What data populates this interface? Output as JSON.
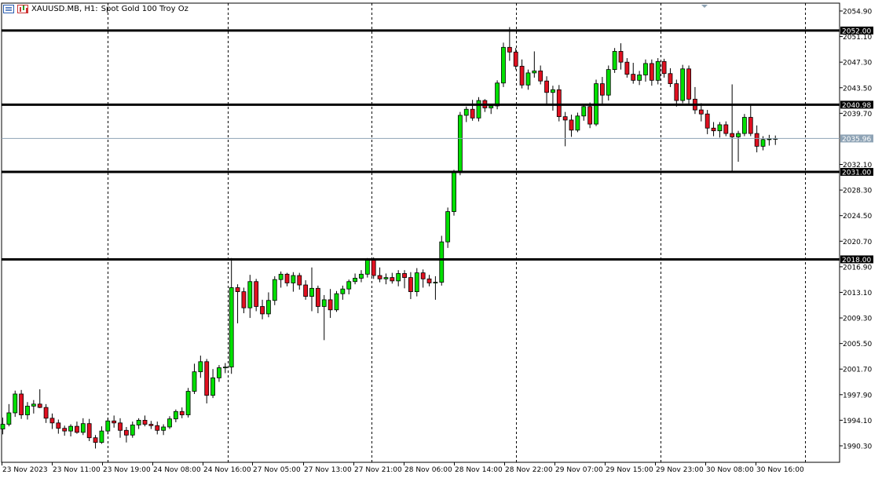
{
  "header": {
    "symbol": "XAUUSD.MB, H1:",
    "description": "Spot Gold 100 Troy Oz",
    "icons": [
      "chart-menu-icon",
      "chart-type-icon"
    ]
  },
  "colors": {
    "bull": "#00e000",
    "bear": "#e01020",
    "wick": "#000000",
    "level_line": "#000000",
    "bid_line": "#8ea3b5",
    "grid": "#000000"
  },
  "price_axis": {
    "ticks": [
      "2054.90",
      "2051.10",
      "2047.30",
      "2043.50",
      "2039.70",
      "2032.10",
      "2028.30",
      "2024.50",
      "2020.70",
      "2016.90",
      "2013.10",
      "2009.30",
      "2005.50",
      "2001.70",
      "1997.90",
      "1994.10",
      "1990.30"
    ],
    "current_price": "2035.96"
  },
  "levels": [
    {
      "label": "2052.00",
      "price": 2052.0
    },
    {
      "label": "2040.98",
      "price": 2040.98
    },
    {
      "label": "2031.00",
      "price": 2031.0
    },
    {
      "label": "2018.00",
      "price": 2018.0
    }
  ],
  "time_axis": {
    "labels": [
      "23 Nov 2023",
      "23 Nov 11:00",
      "23 Nov 19:00",
      "24 Nov 08:00",
      "24 Nov 16:00",
      "27 Nov 05:00",
      "27 Nov 13:00",
      "27 Nov 21:00",
      "28 Nov 06:00",
      "28 Nov 14:00",
      "28 Nov 22:00",
      "29 Nov 07:00",
      "29 Nov 15:00",
      "29 Nov 23:00",
      "30 Nov 08:00",
      "30 Nov 16:00"
    ]
  },
  "chart_data": {
    "type": "candlestick",
    "title": "XAUUSD.MB, H1: Spot Gold 100 Troy Oz",
    "ylim": [
      1988.0,
      2056.0
    ],
    "candles": [
      [
        1992.8,
        1994.5,
        1992.0,
        1993.5
      ],
      [
        1993.5,
        1996.5,
        1993.2,
        1995.2
      ],
      [
        1995.2,
        1998.5,
        1994.6,
        1998.0
      ],
      [
        1998.0,
        1998.6,
        1994.3,
        1994.9
      ],
      [
        1994.9,
        1996.8,
        1994.2,
        1996.2
      ],
      [
        1996.2,
        1997.1,
        1995.1,
        1996.5
      ],
      [
        1996.5,
        1998.7,
        1995.9,
        1996.0
      ],
      [
        1996.0,
        1996.5,
        1993.7,
        1994.4
      ],
      [
        1994.4,
        1995.1,
        1992.8,
        1993.7
      ],
      [
        1993.7,
        1994.2,
        1992.1,
        1992.9
      ],
      [
        1992.9,
        1993.3,
        1991.8,
        1992.5
      ],
      [
        1992.5,
        1993.5,
        1991.7,
        1993.2
      ],
      [
        1993.2,
        1993.9,
        1992.1,
        1992.3
      ],
      [
        1992.3,
        1994.4,
        1991.9,
        1993.6
      ],
      [
        1993.6,
        1994.3,
        1991.0,
        1991.5
      ],
      [
        1991.5,
        1991.9,
        1989.9,
        1990.8
      ],
      [
        1990.8,
        1993.2,
        1990.6,
        1992.5
      ],
      [
        1992.5,
        1994.5,
        1992.0,
        1994.0
      ],
      [
        1994.0,
        1994.8,
        1993.0,
        1993.7
      ],
      [
        1993.7,
        1994.4,
        1991.5,
        1992.6
      ],
      [
        1992.6,
        1993.1,
        1990.8,
        1991.9
      ],
      [
        1991.9,
        1993.9,
        1991.5,
        1993.4
      ],
      [
        1993.4,
        1994.4,
        1992.8,
        1994.1
      ],
      [
        1994.1,
        1994.8,
        1993.2,
        1993.5
      ],
      [
        1993.5,
        1994.0,
        1992.8,
        1993.3
      ],
      [
        1993.3,
        1993.9,
        1992.0,
        1992.6
      ],
      [
        1992.6,
        1993.5,
        1991.9,
        1993.1
      ],
      [
        1993.1,
        1994.7,
        1992.8,
        1994.3
      ],
      [
        1994.3,
        1995.7,
        1993.8,
        1995.4
      ],
      [
        1995.4,
        1996.0,
        1994.4,
        1994.9
      ],
      [
        1994.9,
        1998.9,
        1994.5,
        1998.4
      ],
      [
        1998.4,
        2002.5,
        1998.0,
        2001.3
      ],
      [
        2001.3,
        2003.7,
        2000.4,
        2002.8
      ],
      [
        2002.8,
        2003.2,
        1996.6,
        1997.8
      ],
      [
        1997.8,
        2001.7,
        1997.4,
        2000.4
      ],
      [
        2000.4,
        2002.3,
        1999.8,
        2001.9
      ],
      [
        2001.9,
        2002.6,
        2001.1,
        2002.0
      ],
      [
        2002.0,
        2018.2,
        2001.0,
        2013.8
      ],
      [
        2013.8,
        2014.3,
        2008.5,
        2013.2
      ],
      [
        2013.2,
        2013.8,
        2010.0,
        2010.8
      ],
      [
        2010.8,
        2015.7,
        2009.3,
        2014.7
      ],
      [
        2014.7,
        2015.1,
        2010.3,
        2011.0
      ],
      [
        2011.0,
        2012.0,
        2009.1,
        2009.9
      ],
      [
        2009.9,
        2013.1,
        2009.4,
        2011.9
      ],
      [
        2011.9,
        2015.5,
        2011.2,
        2015.0
      ],
      [
        2015.0,
        2016.2,
        2013.8,
        2015.8
      ],
      [
        2015.8,
        2016.0,
        2014.0,
        2014.5
      ],
      [
        2014.5,
        2016.1,
        2013.2,
        2015.6
      ],
      [
        2015.6,
        2016.0,
        2013.5,
        2014.2
      ],
      [
        2014.2,
        2014.9,
        2012.0,
        2012.5
      ],
      [
        2012.5,
        2016.8,
        2010.3,
        2013.7
      ],
      [
        2013.7,
        2014.1,
        2010.0,
        2011.0
      ],
      [
        2011.0,
        2012.7,
        2006.0,
        2012.0
      ],
      [
        2012.0,
        2013.6,
        2009.3,
        2010.5
      ],
      [
        2010.5,
        2013.3,
        2010.2,
        2012.9
      ],
      [
        2012.9,
        2014.1,
        2012.0,
        2013.6
      ],
      [
        2013.6,
        2015.0,
        2012.8,
        2014.7
      ],
      [
        2014.7,
        2015.9,
        2014.3,
        2015.2
      ],
      [
        2015.2,
        2016.4,
        2014.6,
        2015.8
      ],
      [
        2015.8,
        2018.2,
        2015.3,
        2017.9
      ],
      [
        2017.9,
        2018.3,
        2015.1,
        2015.6
      ],
      [
        2015.6,
        2016.8,
        2014.6,
        2015.1
      ],
      [
        2015.1,
        2015.9,
        2014.3,
        2015.3
      ],
      [
        2015.3,
        2016.0,
        2014.4,
        2014.8
      ],
      [
        2014.8,
        2016.4,
        2014.0,
        2015.9
      ],
      [
        2015.9,
        2016.4,
        2013.7,
        2015.3
      ],
      [
        2015.3,
        2016.1,
        2012.1,
        2013.2
      ],
      [
        2013.2,
        2016.7,
        2012.5,
        2016.0
      ],
      [
        2016.0,
        2016.5,
        2013.8,
        2015.1
      ],
      [
        2015.1,
        2015.7,
        2014.0,
        2014.5
      ],
      [
        2014.5,
        2015.5,
        2012.0,
        2014.6
      ],
      [
        2014.6,
        2021.5,
        2014.1,
        2020.6
      ],
      [
        2020.6,
        2025.7,
        2019.7,
        2025.1
      ],
      [
        2025.1,
        2031.3,
        2024.5,
        2030.9
      ],
      [
        2030.9,
        2039.9,
        2030.5,
        2039.4
      ],
      [
        2039.4,
        2040.7,
        2038.4,
        2040.3
      ],
      [
        2040.3,
        2041.7,
        2038.6,
        2039.0
      ],
      [
        2039.0,
        2042.1,
        2038.5,
        2041.6
      ],
      [
        2041.6,
        2041.8,
        2039.9,
        2040.5
      ],
      [
        2040.5,
        2041.1,
        2039.6,
        2040.8
      ],
      [
        2040.8,
        2044.6,
        2040.3,
        2044.2
      ],
      [
        2044.2,
        2050.2,
        2043.6,
        2049.5
      ],
      [
        2049.5,
        2052.5,
        2047.5,
        2048.8
      ],
      [
        2048.8,
        2049.4,
        2046.2,
        2046.7
      ],
      [
        2046.7,
        2047.7,
        2043.4,
        2043.9
      ],
      [
        2043.9,
        2046.2,
        2043.2,
        2045.7
      ],
      [
        2045.7,
        2048.9,
        2045.0,
        2046.0
      ],
      [
        2046.0,
        2046.8,
        2044.0,
        2044.5
      ],
      [
        2044.5,
        2045.2,
        2041.0,
        2042.8
      ],
      [
        2042.8,
        2043.8,
        2040.1,
        2043.2
      ],
      [
        2043.2,
        2043.9,
        2038.5,
        2039.2
      ],
      [
        2039.2,
        2039.9,
        2034.8,
        2038.7
      ],
      [
        2038.7,
        2039.5,
        2036.2,
        2037.2
      ],
      [
        2037.2,
        2039.8,
        2036.9,
        2039.3
      ],
      [
        2039.3,
        2041.0,
        2038.6,
        2040.7
      ],
      [
        2040.7,
        2041.3,
        2037.5,
        2038.1
      ],
      [
        2038.1,
        2044.7,
        2037.8,
        2044.1
      ],
      [
        2044.1,
        2045.1,
        2041.0,
        2042.4
      ],
      [
        2042.4,
        2046.8,
        2041.6,
        2046.2
      ],
      [
        2046.2,
        2049.4,
        2045.7,
        2048.9
      ],
      [
        2048.9,
        2050.1,
        2046.2,
        2047.3
      ],
      [
        2047.3,
        2047.9,
        2045.0,
        2045.5
      ],
      [
        2045.5,
        2047.2,
        2044.1,
        2044.6
      ],
      [
        2044.6,
        2046.0,
        2043.9,
        2045.4
      ],
      [
        2045.4,
        2047.7,
        2044.4,
        2047.1
      ],
      [
        2047.1,
        2047.7,
        2043.8,
        2044.6
      ],
      [
        2044.6,
        2047.9,
        2044.0,
        2047.4
      ],
      [
        2047.4,
        2047.8,
        2045.0,
        2045.6
      ],
      [
        2045.6,
        2046.4,
        2043.6,
        2044.1
      ],
      [
        2044.1,
        2044.7,
        2040.7,
        2041.6
      ],
      [
        2041.6,
        2046.9,
        2041.2,
        2046.3
      ],
      [
        2046.3,
        2046.8,
        2041.1,
        2041.8
      ],
      [
        2041.8,
        2043.6,
        2039.6,
        2040.2
      ],
      [
        2040.2,
        2041.2,
        2038.5,
        2039.6
      ],
      [
        2039.6,
        2040.2,
        2036.6,
        2037.5
      ],
      [
        2037.5,
        2038.4,
        2036.3,
        2037.1
      ],
      [
        2037.1,
        2038.4,
        2036.1,
        2038.0
      ],
      [
        2038.0,
        2038.5,
        2036.3,
        2036.7
      ],
      [
        2036.7,
        2044.0,
        2031.0,
        2036.2
      ],
      [
        2036.2,
        2037.1,
        2032.5,
        2036.7
      ],
      [
        2036.7,
        2039.6,
        2036.3,
        2039.1
      ],
      [
        2039.1,
        2040.9,
        2036.3,
        2036.7
      ],
      [
        2036.7,
        2037.9,
        2033.9,
        2034.8
      ],
      [
        2034.8,
        2036.3,
        2034.2,
        2035.8
      ],
      [
        2035.8,
        2036.5,
        2034.9,
        2035.9
      ],
      [
        2035.9,
        2036.4,
        2035.0,
        2035.96
      ]
    ]
  }
}
